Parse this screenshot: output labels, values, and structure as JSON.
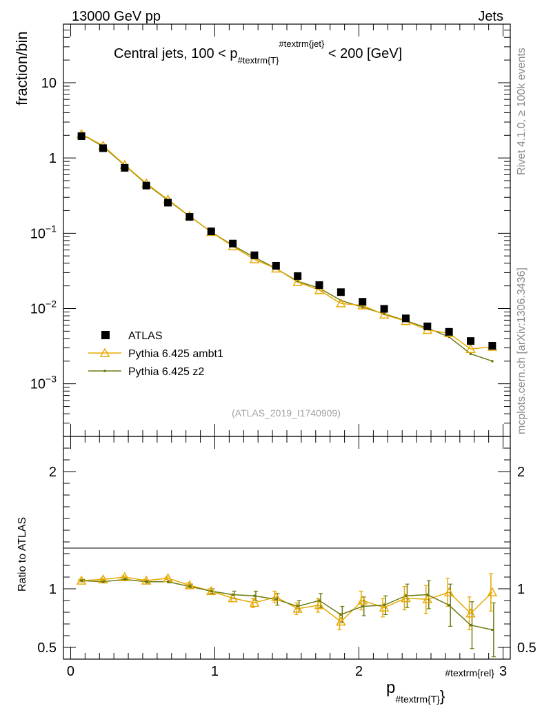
{
  "header": {
    "left": "13000 GeV pp",
    "right": "Jets"
  },
  "side_labels": {
    "rivet": "Rivet 4.1.0, ≥ 100k events",
    "mcplots": "mcplots.cern.ch [arXiv:1306.3436]"
  },
  "colors": {
    "atlas": "#000000",
    "ambt1": "#e8a800",
    "z2": "#6b7a10",
    "axis": "#000000"
  },
  "chart_data": {
    "type": "scatter",
    "title_main": "Central jets, 100 < p",
    "title_sub": "#textrm{T}",
    "title_sup": "#textrm{jet}",
    "title_tail": " < 200 [GeV]",
    "ylabel": "fraction/bin",
    "ratio_ylabel": "Ratio to ATLAS",
    "xlabel_main": "p",
    "xlabel_sub": "#textrm{T}",
    "xlabel_sup": "#textrm{rel}",
    "watermark": "(ATLAS_2019_I1740909)",
    "xlim": [
      -0.05,
      3.05
    ],
    "ylim": [
      0.0002,
      60
    ],
    "ratio_ylim": [
      0.4,
      2.3
    ],
    "x_ticks": [
      "0",
      "1",
      "2",
      "3"
    ],
    "y_ticks": [
      "10^-3",
      "10^-2",
      "10^-1",
      "1",
      "10"
    ],
    "ratio_ticks": [
      "0.5",
      "1",
      "2"
    ],
    "x": [
      0.075,
      0.225,
      0.375,
      0.525,
      0.675,
      0.825,
      0.975,
      1.125,
      1.275,
      1.425,
      1.575,
      1.725,
      1.875,
      2.025,
      2.175,
      2.325,
      2.475,
      2.625,
      2.775,
      2.925
    ],
    "legend": [
      "ATLAS",
      "Pythia 6.425 ambt1",
      "Pythia 6.425 z2"
    ],
    "series": [
      {
        "name": "ATLAS",
        "values": [
          1.95,
          1.35,
          0.74,
          0.43,
          0.255,
          0.165,
          0.106,
          0.073,
          0.051,
          0.037,
          0.027,
          0.0205,
          0.0165,
          0.0123,
          0.0099,
          0.0074,
          0.0058,
          0.0049,
          0.0037,
          0.0032
        ]
      },
      {
        "name": "Pythia 6.425 ambt1",
        "values": [
          2.08,
          1.46,
          0.81,
          0.46,
          0.28,
          0.17,
          0.104,
          0.067,
          0.045,
          0.034,
          0.0225,
          0.0176,
          0.0117,
          0.011,
          0.0083,
          0.0068,
          0.0052,
          0.0047,
          0.0029,
          0.0031
        ],
        "ratio": [
          1.07,
          1.08,
          1.1,
          1.07,
          1.09,
          1.03,
          0.98,
          0.92,
          0.88,
          0.93,
          0.83,
          0.86,
          0.72,
          0.9,
          0.84,
          0.92,
          0.91,
          0.97,
          0.79,
          0.97
        ],
        "ratio_err": [
          0.01,
          0.01,
          0.01,
          0.01,
          0.01,
          0.02,
          0.02,
          0.03,
          0.04,
          0.05,
          0.05,
          0.06,
          0.07,
          0.08,
          0.08,
          0.1,
          0.12,
          0.12,
          0.14,
          0.16
        ]
      },
      {
        "name": "Pythia 6.425 z2",
        "values": [
          2.08,
          1.42,
          0.8,
          0.45,
          0.275,
          0.168,
          0.104,
          0.069,
          0.048,
          0.034,
          0.023,
          0.0187,
          0.0128,
          0.0104,
          0.0085,
          0.0069,
          0.0055,
          0.0042,
          0.0025,
          0.002
        ],
        "ratio": [
          1.07,
          1.06,
          1.08,
          1.06,
          1.06,
          1.02,
          0.98,
          0.95,
          0.94,
          0.91,
          0.85,
          0.9,
          0.78,
          0.85,
          0.86,
          0.94,
          0.95,
          0.86,
          0.69,
          0.65
        ],
        "ratio_err": [
          0.01,
          0.01,
          0.01,
          0.01,
          0.01,
          0.02,
          0.02,
          0.03,
          0.04,
          0.05,
          0.05,
          0.06,
          0.07,
          0.08,
          0.08,
          0.1,
          0.12,
          0.18,
          0.2,
          0.23
        ]
      }
    ]
  }
}
